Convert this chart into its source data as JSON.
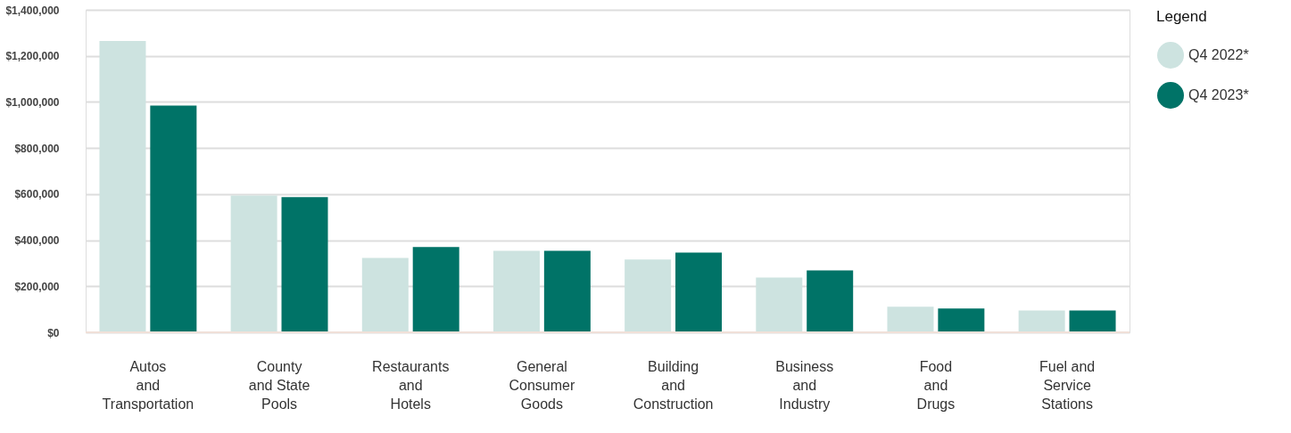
{
  "chart_data": {
    "type": "bar",
    "categories": [
      "Autos\nand\nTransportation",
      "County\nand State\nPools",
      "Restaurants\nand\nHotels",
      "General\nConsumer\nGoods",
      "Building\nand\nConstruction",
      "Business\nand\nIndustry",
      "Food\nand\nDrugs",
      "Fuel and\nService\nStations"
    ],
    "series": [
      {
        "name": "Q4 2022*",
        "color": "#cde3e0",
        "values": [
          1265000,
          594000,
          323000,
          354000,
          316000,
          238000,
          111000,
          95000
        ]
      },
      {
        "name": "Q4 2023*",
        "color": "#007367",
        "values": [
          984000,
          587000,
          370000,
          354000,
          346000,
          269000,
          103000,
          95000
        ]
      }
    ],
    "ylim": [
      0,
      1400000
    ],
    "yticks": [
      {
        "value": 0,
        "label": "$0"
      },
      {
        "value": 200000,
        "label": "$200,000"
      },
      {
        "value": 400000,
        "label": "$400,000"
      },
      {
        "value": 600000,
        "label": "$600,000"
      },
      {
        "value": 800000,
        "label": "$800,000"
      },
      {
        "value": 1000000,
        "label": "$1,000,000"
      },
      {
        "value": 1200000,
        "label": "$1,200,000"
      },
      {
        "value": 1400000,
        "label": "$1,400,000"
      }
    ],
    "legend_title": "Legend",
    "legend": "right",
    "grid": "y"
  }
}
